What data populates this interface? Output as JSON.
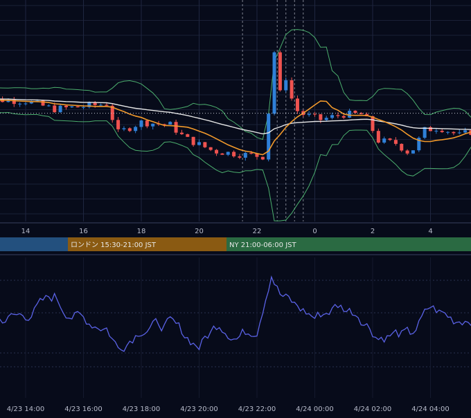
{
  "chart_data": [
    {
      "type": "candlestick",
      "title": "",
      "x_ticks": [
        "14",
        "16",
        "18",
        "20",
        "22",
        "0",
        "2",
        "4"
      ],
      "overlays": [
        {
          "name": "",
          "kind": "bollinger",
          "color": "#4caf6e"
        },
        {
          "name": "",
          "kind": "moving-average-fast",
          "color": "#f39a2b"
        },
        {
          "name": "",
          "kind": "moving-average-slow",
          "color": "#e8e8e8"
        }
      ],
      "anchors_hour": [
        12.2,
        14.0,
        15.0,
        16.0,
        16.8,
        17.2,
        18.0,
        19.0,
        19.5,
        20.5,
        21.3,
        22.2,
        22.45,
        22.65,
        22.8,
        23.0,
        23.3,
        23.6,
        24.2,
        25.0,
        25.7,
        26.2,
        26.8,
        27.3,
        27.8,
        28.3,
        29.0,
        29.6
      ],
      "anchors_price": [
        0.2,
        0.1,
        -0.2,
        -0.1,
        0.0,
        -1.1,
        -0.7,
        -0.8,
        -1.3,
        -1.8,
        -1.9,
        -2.0,
        0.1,
        2.6,
        0.4,
        1.0,
        -0.2,
        -0.4,
        -0.6,
        -0.4,
        -0.4,
        -1.4,
        -1.5,
        -1.9,
        -1.0,
        -0.9,
        -1.2,
        -1.0
      ],
      "sessions": [
        {
          "label": "",
          "color": "#23507e"
        },
        {
          "label": "ロンドン 15:30-21:00 JST",
          "color": "#8a5a12"
        },
        {
          "label": "NY 21:00-06:00 JST",
          "color": "#2a6a42"
        }
      ],
      "event_lines": [
        {
          "x_hour": 21.5,
          "color": "#b0b4c0"
        },
        {
          "x_hour": 22.7,
          "color": "#b0b4c0"
        },
        {
          "x_hour": 23.0,
          "color": "#b0b4c0"
        },
        {
          "x_hour": 23.3,
          "color": "#b0b4c0"
        },
        {
          "x_hour": 23.6,
          "color": "#b0b4c0"
        }
      ],
      "colors": {
        "up": "#2f80d8",
        "down": "#ef5350",
        "background": "#070b1a"
      }
    },
    {
      "type": "line",
      "title": "",
      "series": [
        {
          "name": "",
          "color": "#5a62e6"
        }
      ],
      "x_ticks": [
        "4/23 14:00",
        "4/23 16:00",
        "4/23 18:00",
        "4/23 20:00",
        "4/23 22:00",
        "4/24 00:00",
        "4/24 02:00",
        "4/24 04:00"
      ],
      "anchors_hour": [
        12.0,
        13.0,
        14.0,
        15.0,
        15.3,
        16.0,
        16.8,
        17.2,
        18.0,
        19.0,
        20.0,
        20.7,
        21.3,
        22.0,
        22.5,
        22.8,
        23.3,
        24.0,
        24.8,
        25.5,
        26.2,
        26.8,
        27.3,
        28.0,
        28.8,
        29.6
      ],
      "anchors_value": [
        50,
        47,
        49,
        57,
        52,
        47,
        44,
        35,
        44,
        45,
        36,
        46,
        40,
        44,
        68,
        58,
        53,
        48,
        53,
        50,
        40,
        41,
        40,
        52,
        47,
        49
      ]
    }
  ]
}
